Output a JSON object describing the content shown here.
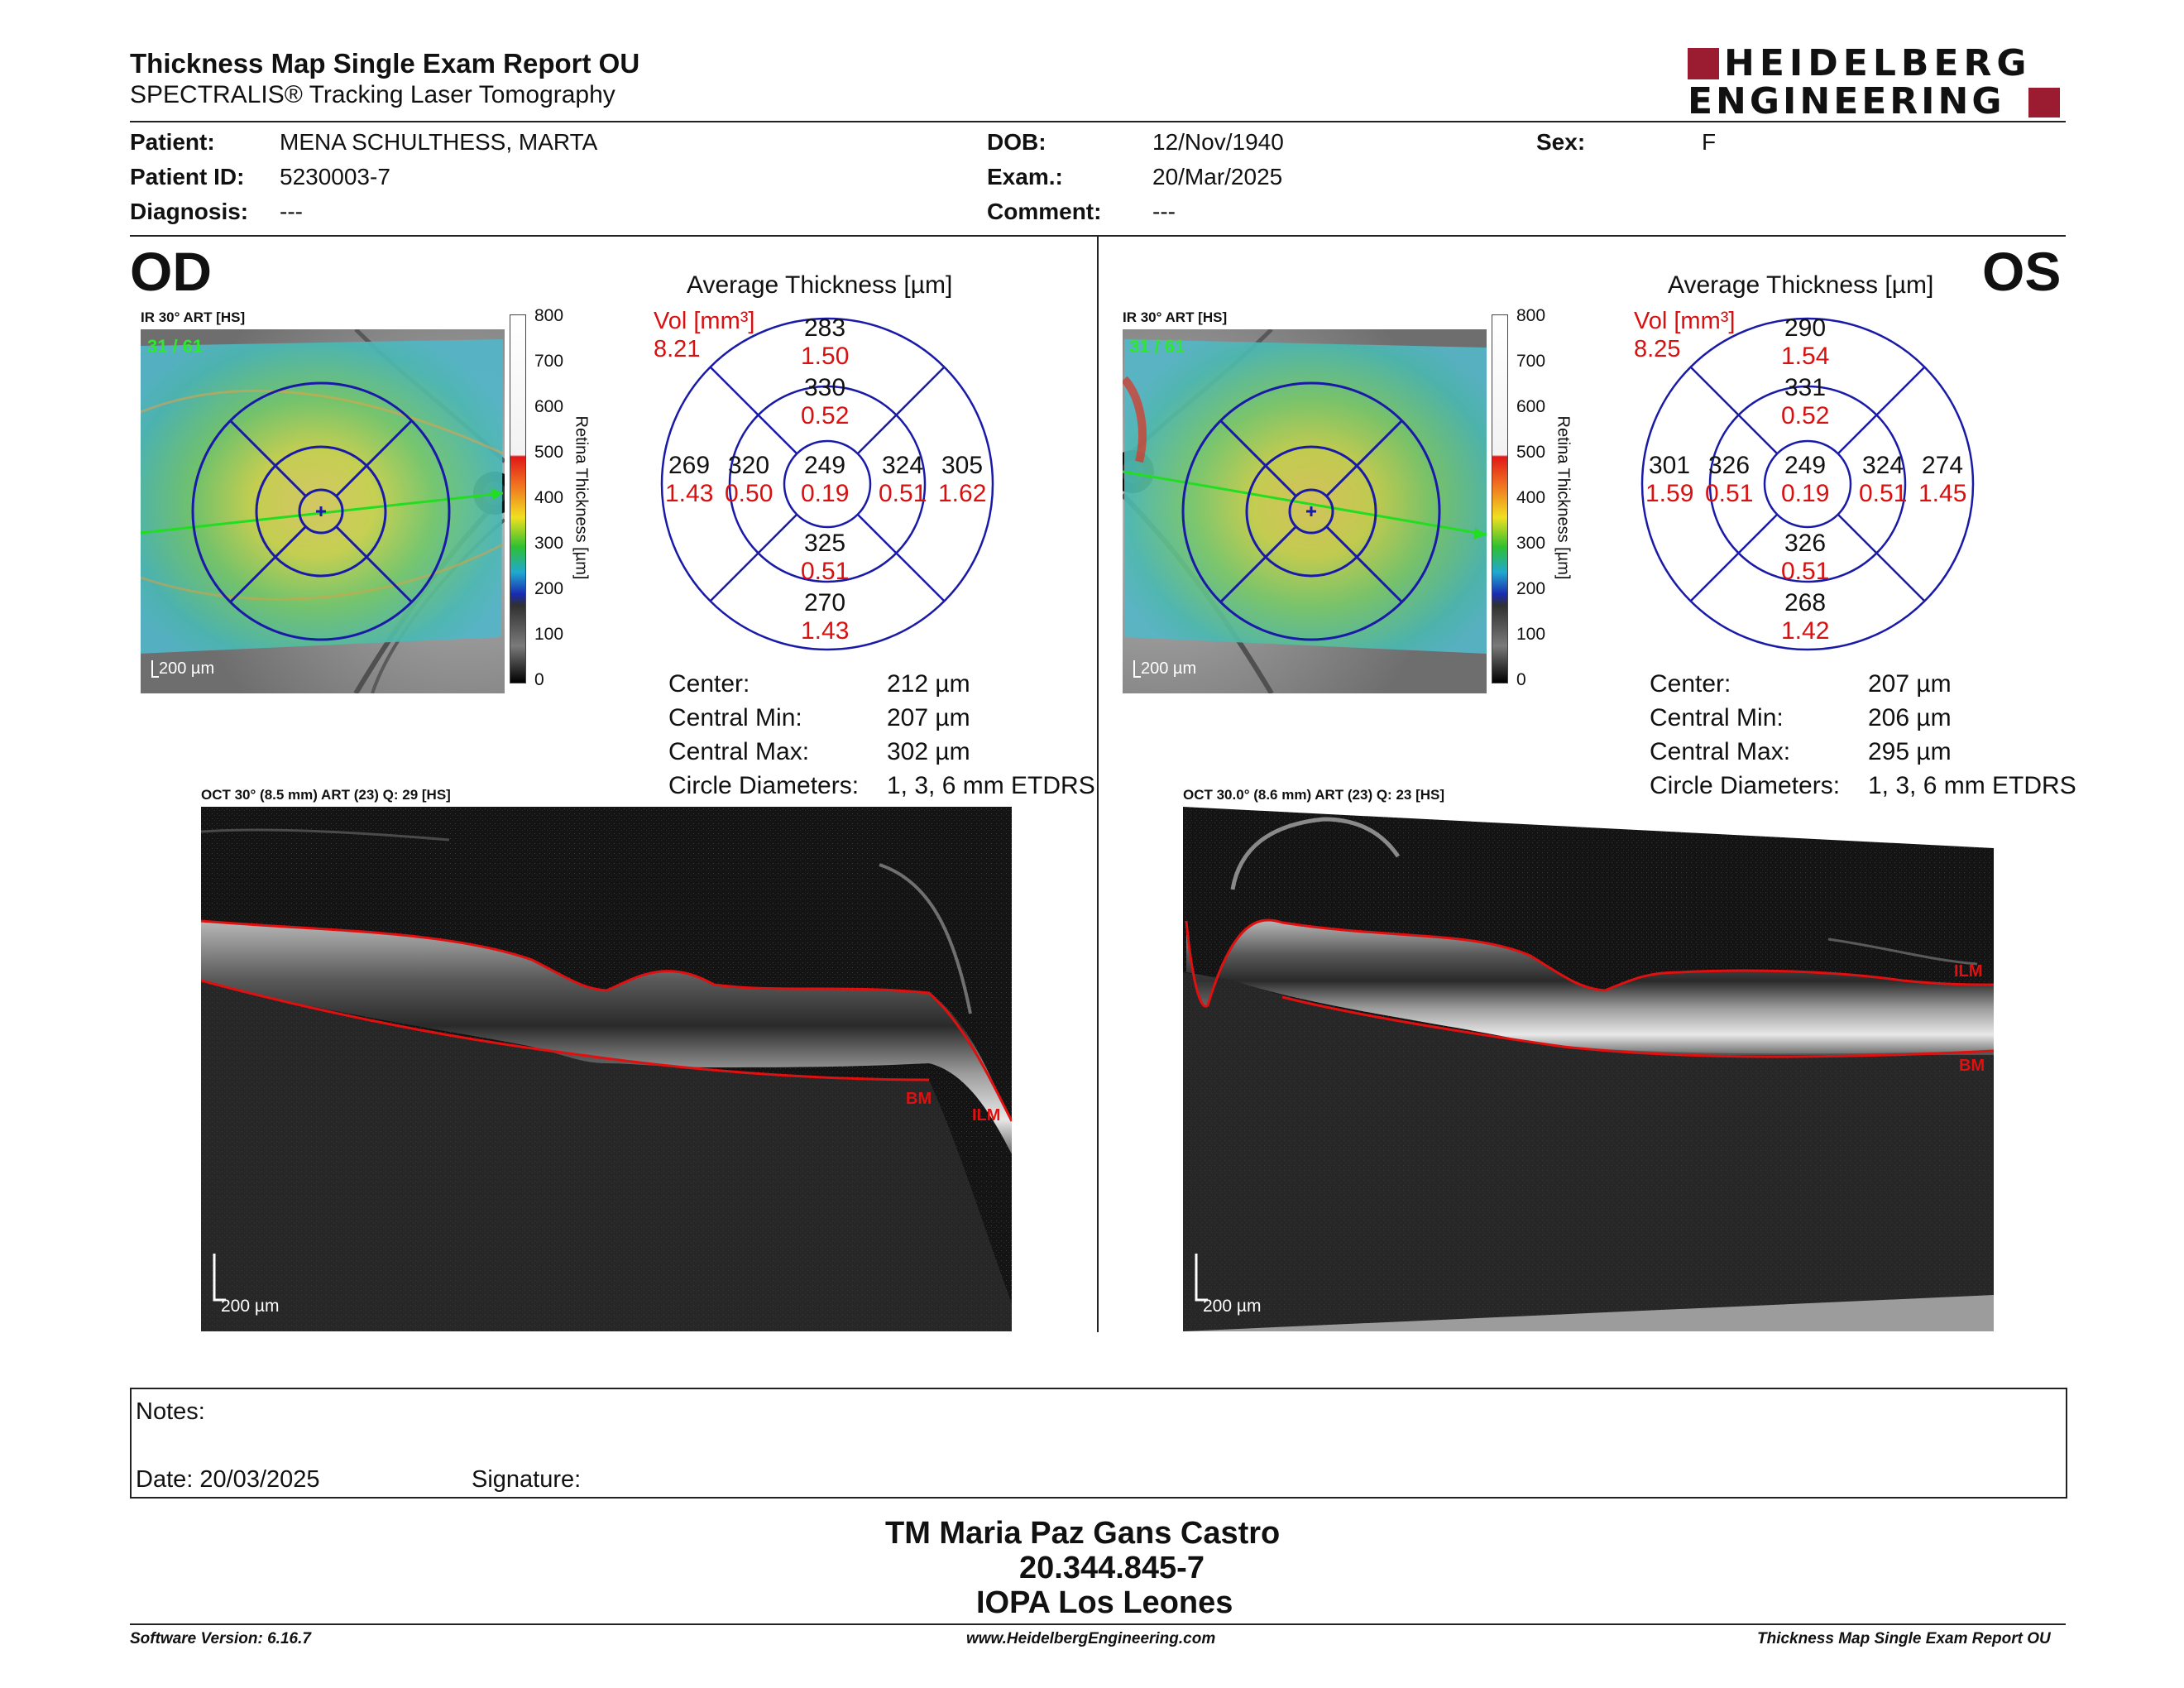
{
  "header": {
    "title": "Thickness Map Single Exam Report OU",
    "subtitle": "SPECTRALIS® Tracking Laser Tomography",
    "logo_line1": "HEIDELBERG",
    "logo_line2": "ENGINEERING"
  },
  "patient": {
    "patient_label": "Patient:",
    "patient_value": "MENA SCHULTHESS, MARTA",
    "id_label": "Patient ID:",
    "id_value": "5230003-7",
    "diagnosis_label": "Diagnosis:",
    "diagnosis_value": "---",
    "dob_label": "DOB:",
    "dob_value": "12/Nov/1940",
    "exam_label": "Exam.:",
    "exam_value": "20/Mar/2025",
    "comment_label": "Comment:",
    "comment_value": "---",
    "sex_label": "Sex:",
    "sex_value": "F"
  },
  "colorbar": {
    "ticks": [
      "800",
      "700",
      "600",
      "500",
      "400",
      "300",
      "200",
      "100",
      "0"
    ],
    "label": "Retina Thickness [µm]"
  },
  "od": {
    "eye_label": "OD",
    "ir_label": "IR 30° ART [HS]",
    "frames": "31 / 61",
    "scale": "200 µm",
    "avg_title": "Average Thickness [µm]",
    "vol_label": "Vol [mm³]",
    "vol_value": "8.21",
    "sectors": {
      "outer_sup": [
        "283",
        "1.50"
      ],
      "inner_sup": [
        "330",
        "0.52"
      ],
      "outer_temp": [
        "269",
        "1.43"
      ],
      "inner_temp": [
        "320",
        "0.50"
      ],
      "center": [
        "249",
        "0.19"
      ],
      "inner_nas": [
        "324",
        "0.51"
      ],
      "outer_nas": [
        "305",
        "1.62"
      ],
      "inner_inf": [
        "325",
        "0.51"
      ],
      "outer_inf": [
        "270",
        "1.43"
      ]
    },
    "stats": {
      "center_label": "Center:",
      "center_value": "212 µm",
      "min_label": "Central Min:",
      "min_value": "207 µm",
      "max_label": "Central Max:",
      "max_value": "302 µm",
      "circ_label": "Circle Diameters:",
      "circ_value": "1, 3, 6 mm ETDRS"
    },
    "oct_label": "OCT 30° (8.5 mm) ART (23) Q: 29 [HS]",
    "oct_scale": "200 µm",
    "bm": "BM",
    "ilm": "ILM"
  },
  "os": {
    "eye_label": "OS",
    "ir_label": "IR 30° ART [HS]",
    "frames": "31 / 61",
    "scale": "200 µm",
    "avg_title": "Average Thickness [µm]",
    "vol_label": "Vol [mm³]",
    "vol_value": "8.25",
    "sectors": {
      "outer_sup": [
        "290",
        "1.54"
      ],
      "inner_sup": [
        "331",
        "0.52"
      ],
      "outer_temp": [
        "301",
        "1.59"
      ],
      "inner_temp": [
        "326",
        "0.51"
      ],
      "center": [
        "249",
        "0.19"
      ],
      "inner_nas": [
        "324",
        "0.51"
      ],
      "outer_nas": [
        "274",
        "1.45"
      ],
      "inner_inf": [
        "326",
        "0.51"
      ],
      "outer_inf": [
        "268",
        "1.42"
      ]
    },
    "stats": {
      "center_label": "Center:",
      "center_value": "207 µm",
      "min_label": "Central Min:",
      "min_value": "206 µm",
      "max_label": "Central Max:",
      "max_value": "295 µm",
      "circ_label": "Circle Diameters:",
      "circ_value": "1, 3, 6 mm ETDRS"
    },
    "oct_label": "OCT 30.0° (8.6 mm) ART (23) Q: 23 [HS]",
    "oct_scale": "200 µm",
    "bm": "BM",
    "ilm": "ILM"
  },
  "notes": {
    "notes_label": "Notes:",
    "date_label": "Date: 20/03/2025",
    "signature_label": "Signature:"
  },
  "stamp": {
    "line1": "TM Maria Paz Gans Castro",
    "line2": "20.344.845-7",
    "line3": "IOPA Los Leones"
  },
  "footer": {
    "software": "Software Version: 6.16.7",
    "website": "www.HeidelbergEngineering.com",
    "report": "Thickness Map Single Exam Report OU"
  },
  "colors": {
    "accent_red": "#d81010",
    "logo_red": "#9b1b30",
    "etdrs_blue": "#1a1aa8"
  }
}
